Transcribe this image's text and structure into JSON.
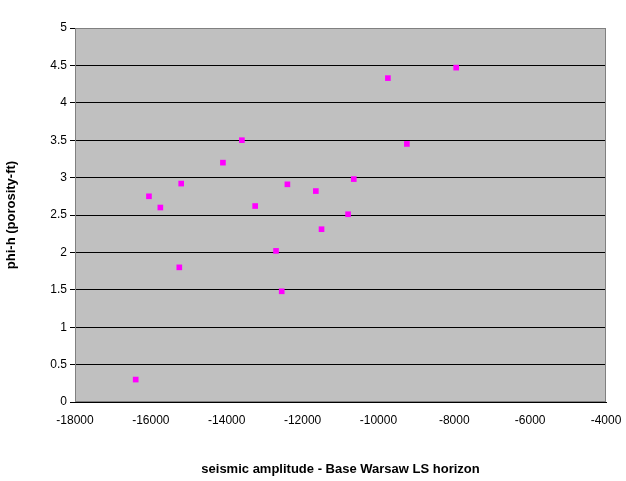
{
  "chart_data": {
    "type": "scatter",
    "x_label": "seismic amplitude - Base Warsaw LS horizon",
    "y_label": "phi-h (porosity-ft)",
    "x": [
      -16400,
      -16050,
      -15750,
      -15200,
      -15250,
      -14100,
      -13600,
      -13250,
      -12400,
      -12700,
      -12550,
      -11650,
      -11500,
      -10800,
      -10650,
      -9750,
      -9250,
      -7950
    ],
    "values": [
      0.3,
      2.75,
      2.6,
      2.92,
      1.8,
      3.2,
      3.5,
      2.62,
      2.91,
      2.02,
      1.48,
      2.82,
      2.31,
      2.51,
      2.98,
      4.33,
      3.45,
      4.47
    ],
    "color": "#ff00ff",
    "marker": "square",
    "xlim": [
      -18000,
      -4000
    ],
    "xticks": [
      -18000,
      -16000,
      -14000,
      -12000,
      -10000,
      -8000,
      -6000,
      -4000
    ],
    "ylim": [
      0,
      5
    ],
    "yticks": [
      0,
      0.5,
      1,
      1.5,
      2,
      2.5,
      3,
      3.5,
      4,
      4.5,
      5
    ],
    "grid": true
  }
}
